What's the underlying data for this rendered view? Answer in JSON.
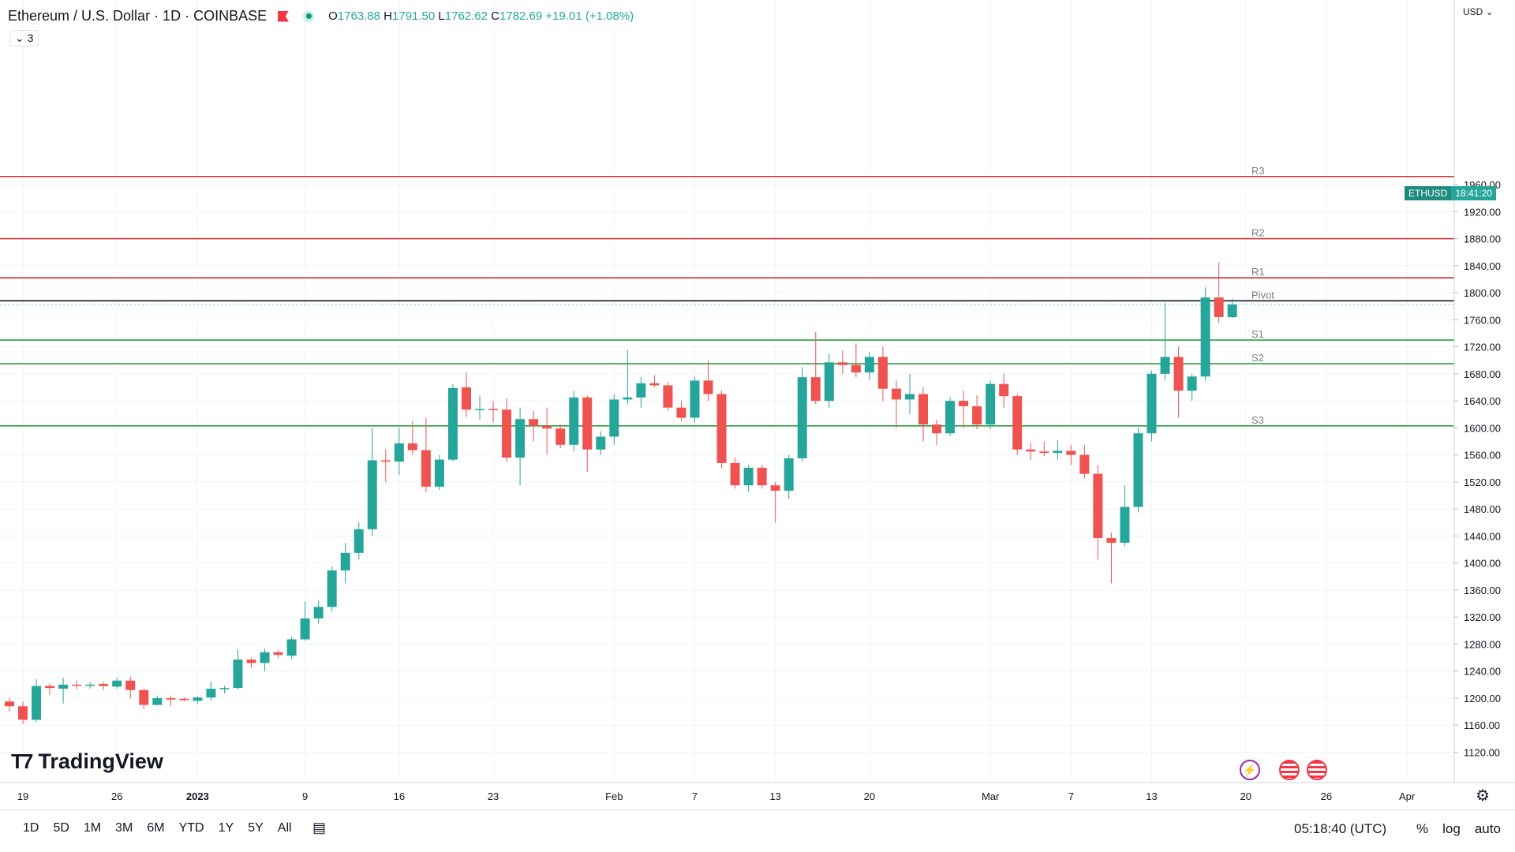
{
  "header": {
    "symbol": "Ethereum / U.S. Dollar · 1D · COINBASE",
    "open_label": "O",
    "open": "1763.88",
    "high_label": "H",
    "high": "1791.50",
    "low_label": "L",
    "low": "1762.62",
    "close_label": "C",
    "close": "1782.69",
    "change": "+19.01 (+1.08%)"
  },
  "indicator_count": "3",
  "currency": "USD",
  "logo_text": "TradingView",
  "price_tag": {
    "ticker": "ETHUSD",
    "countdown": "18:41:20"
  },
  "bottom_bar": {
    "ranges": [
      "1D",
      "5D",
      "1M",
      "3M",
      "6M",
      "YTD",
      "1Y",
      "5Y",
      "All"
    ],
    "time": "05:18:40 (UTC)",
    "options": [
      "%",
      "log",
      "auto"
    ]
  },
  "colors": {
    "up": "#26a69a",
    "down": "#ef5350",
    "resistance": "#d32f2f",
    "support": "#2e9e3e",
    "pivot": "#131722"
  },
  "chart_data": {
    "type": "candlestick",
    "title": "",
    "ylim": [
      1095,
      1985
    ],
    "y_ticks": [
      1120,
      1160,
      1200,
      1240,
      1280,
      1320,
      1360,
      1400,
      1440,
      1480,
      1520,
      1560,
      1600,
      1640,
      1680,
      1720,
      1760,
      1800,
      1840,
      1880,
      1920,
      1960
    ],
    "x_ticks": [
      {
        "label": "19",
        "date": "2022-12-19"
      },
      {
        "label": "26",
        "date": "2022-12-26"
      },
      {
        "label": "2023",
        "date": "2023-01-01"
      },
      {
        "label": "9",
        "date": "2023-01-09"
      },
      {
        "label": "16",
        "date": "2023-01-16"
      },
      {
        "label": "23",
        "date": "2023-01-23"
      },
      {
        "label": "Feb",
        "date": "2023-02-01"
      },
      {
        "label": "7",
        "date": "2023-02-07"
      },
      {
        "label": "13",
        "date": "2023-02-13"
      },
      {
        "label": "20",
        "date": "2023-02-20"
      },
      {
        "label": "Mar",
        "date": "2023-03-01"
      },
      {
        "label": "7",
        "date": "2023-03-07"
      },
      {
        "label": "13",
        "date": "2023-03-13"
      },
      {
        "label": "20",
        "date": "2023-03-20"
      },
      {
        "label": "26",
        "date": "2023-03-26"
      },
      {
        "label": "Apr",
        "date": "2023-04-01"
      }
    ],
    "levels": [
      {
        "name": "R3",
        "value": 1972,
        "kind": "resistance"
      },
      {
        "name": "R2",
        "value": 1880,
        "kind": "resistance"
      },
      {
        "name": "R1",
        "value": 1822,
        "kind": "resistance"
      },
      {
        "name": "Pivot",
        "value": 1788,
        "kind": "pivot"
      },
      {
        "name": "S1",
        "value": 1730,
        "kind": "support"
      },
      {
        "name": "S2",
        "value": 1695,
        "kind": "support"
      },
      {
        "name": "S3",
        "value": 1603,
        "kind": "support"
      }
    ],
    "candles": [
      {
        "date": "2022-12-18",
        "o": 1195,
        "h": 1200,
        "l": 1180,
        "c": 1188
      },
      {
        "date": "2022-12-19",
        "o": 1188,
        "h": 1195,
        "l": 1162,
        "c": 1168
      },
      {
        "date": "2022-12-20",
        "o": 1168,
        "h": 1228,
        "l": 1165,
        "c": 1218
      },
      {
        "date": "2022-12-21",
        "o": 1218,
        "h": 1222,
        "l": 1205,
        "c": 1215
      },
      {
        "date": "2022-12-22",
        "o": 1214,
        "h": 1230,
        "l": 1192,
        "c": 1220
      },
      {
        "date": "2022-12-23",
        "o": 1220,
        "h": 1226,
        "l": 1213,
        "c": 1219
      },
      {
        "date": "2022-12-24",
        "o": 1219,
        "h": 1224,
        "l": 1214,
        "c": 1220
      },
      {
        "date": "2022-12-25",
        "o": 1221,
        "h": 1224,
        "l": 1212,
        "c": 1218
      },
      {
        "date": "2022-12-26",
        "o": 1217,
        "h": 1230,
        "l": 1214,
        "c": 1226
      },
      {
        "date": "2022-12-27",
        "o": 1226,
        "h": 1232,
        "l": 1200,
        "c": 1212
      },
      {
        "date": "2022-12-28",
        "o": 1212,
        "h": 1214,
        "l": 1184,
        "c": 1190
      },
      {
        "date": "2022-12-29",
        "o": 1190,
        "h": 1204,
        "l": 1189,
        "c": 1200
      },
      {
        "date": "2022-12-30",
        "o": 1200,
        "h": 1204,
        "l": 1188,
        "c": 1198
      },
      {
        "date": "2022-12-31",
        "o": 1199,
        "h": 1201,
        "l": 1195,
        "c": 1197
      },
      {
        "date": "2023-01-01",
        "o": 1196,
        "h": 1203,
        "l": 1192,
        "c": 1201
      },
      {
        "date": "2023-01-02",
        "o": 1201,
        "h": 1225,
        "l": 1196,
        "c": 1214
      },
      {
        "date": "2023-01-03",
        "o": 1214,
        "h": 1218,
        "l": 1207,
        "c": 1215
      },
      {
        "date": "2023-01-04",
        "o": 1215,
        "h": 1272,
        "l": 1213,
        "c": 1257
      },
      {
        "date": "2023-01-05",
        "o": 1257,
        "h": 1260,
        "l": 1245,
        "c": 1252
      },
      {
        "date": "2023-01-06",
        "o": 1252,
        "h": 1273,
        "l": 1240,
        "c": 1268
      },
      {
        "date": "2023-01-07",
        "o": 1268,
        "h": 1271,
        "l": 1259,
        "c": 1264
      },
      {
        "date": "2023-01-08",
        "o": 1263,
        "h": 1291,
        "l": 1258,
        "c": 1287
      },
      {
        "date": "2023-01-09",
        "o": 1287,
        "h": 1343,
        "l": 1285,
        "c": 1318
      },
      {
        "date": "2023-01-10",
        "o": 1318,
        "h": 1345,
        "l": 1310,
        "c": 1335
      },
      {
        "date": "2023-01-11",
        "o": 1335,
        "h": 1395,
        "l": 1328,
        "c": 1389
      },
      {
        "date": "2023-01-12",
        "o": 1389,
        "h": 1430,
        "l": 1370,
        "c": 1415
      },
      {
        "date": "2023-01-13",
        "o": 1415,
        "h": 1460,
        "l": 1405,
        "c": 1450
      },
      {
        "date": "2023-01-14",
        "o": 1450,
        "h": 1600,
        "l": 1440,
        "c": 1552
      },
      {
        "date": "2023-01-15",
        "o": 1552,
        "h": 1568,
        "l": 1520,
        "c": 1550
      },
      {
        "date": "2023-01-16",
        "o": 1550,
        "h": 1600,
        "l": 1530,
        "c": 1577
      },
      {
        "date": "2023-01-17",
        "o": 1577,
        "h": 1610,
        "l": 1560,
        "c": 1567
      },
      {
        "date": "2023-01-18",
        "o": 1567,
        "h": 1615,
        "l": 1505,
        "c": 1513
      },
      {
        "date": "2023-01-19",
        "o": 1513,
        "h": 1560,
        "l": 1508,
        "c": 1553
      },
      {
        "date": "2023-01-20",
        "o": 1553,
        "h": 1665,
        "l": 1550,
        "c": 1659
      },
      {
        "date": "2023-01-21",
        "o": 1660,
        "h": 1682,
        "l": 1616,
        "c": 1627
      },
      {
        "date": "2023-01-22",
        "o": 1627,
        "h": 1648,
        "l": 1612,
        "c": 1628
      },
      {
        "date": "2023-01-23",
        "o": 1628,
        "h": 1640,
        "l": 1608,
        "c": 1627
      },
      {
        "date": "2023-01-24",
        "o": 1627,
        "h": 1643,
        "l": 1550,
        "c": 1556
      },
      {
        "date": "2023-01-25",
        "o": 1556,
        "h": 1630,
        "l": 1515,
        "c": 1613
      },
      {
        "date": "2023-01-26",
        "o": 1613,
        "h": 1625,
        "l": 1580,
        "c": 1603
      },
      {
        "date": "2023-01-27",
        "o": 1603,
        "h": 1630,
        "l": 1560,
        "c": 1599
      },
      {
        "date": "2023-01-28",
        "o": 1599,
        "h": 1605,
        "l": 1570,
        "c": 1575
      },
      {
        "date": "2023-01-29",
        "o": 1575,
        "h": 1655,
        "l": 1565,
        "c": 1645
      },
      {
        "date": "2023-01-30",
        "o": 1645,
        "h": 1648,
        "l": 1535,
        "c": 1568
      },
      {
        "date": "2023-01-31",
        "o": 1568,
        "h": 1595,
        "l": 1560,
        "c": 1587
      },
      {
        "date": "2023-02-01",
        "o": 1587,
        "h": 1650,
        "l": 1575,
        "c": 1642
      },
      {
        "date": "2023-02-02",
        "o": 1642,
        "h": 1715,
        "l": 1635,
        "c": 1645
      },
      {
        "date": "2023-02-03",
        "o": 1645,
        "h": 1675,
        "l": 1630,
        "c": 1666
      },
      {
        "date": "2023-02-04",
        "o": 1666,
        "h": 1678,
        "l": 1660,
        "c": 1663
      },
      {
        "date": "2023-02-05",
        "o": 1663,
        "h": 1668,
        "l": 1625,
        "c": 1630
      },
      {
        "date": "2023-02-06",
        "o": 1630,
        "h": 1640,
        "l": 1610,
        "c": 1615
      },
      {
        "date": "2023-02-07",
        "o": 1615,
        "h": 1675,
        "l": 1608,
        "c": 1670
      },
      {
        "date": "2023-02-08",
        "o": 1670,
        "h": 1700,
        "l": 1640,
        "c": 1650
      },
      {
        "date": "2023-02-09",
        "o": 1650,
        "h": 1655,
        "l": 1540,
        "c": 1548
      },
      {
        "date": "2023-02-10",
        "o": 1548,
        "h": 1556,
        "l": 1510,
        "c": 1515
      },
      {
        "date": "2023-02-11",
        "o": 1515,
        "h": 1545,
        "l": 1505,
        "c": 1541
      },
      {
        "date": "2023-02-12",
        "o": 1541,
        "h": 1545,
        "l": 1510,
        "c": 1515
      },
      {
        "date": "2023-02-13",
        "o": 1515,
        "h": 1520,
        "l": 1460,
        "c": 1507
      },
      {
        "date": "2023-02-14",
        "o": 1507,
        "h": 1560,
        "l": 1495,
        "c": 1555
      },
      {
        "date": "2023-02-15",
        "o": 1555,
        "h": 1690,
        "l": 1550,
        "c": 1675
      },
      {
        "date": "2023-02-16",
        "o": 1675,
        "h": 1742,
        "l": 1635,
        "c": 1640
      },
      {
        "date": "2023-02-17",
        "o": 1640,
        "h": 1710,
        "l": 1630,
        "c": 1697
      },
      {
        "date": "2023-02-18",
        "o": 1697,
        "h": 1715,
        "l": 1680,
        "c": 1693
      },
      {
        "date": "2023-02-19",
        "o": 1693,
        "h": 1725,
        "l": 1675,
        "c": 1682
      },
      {
        "date": "2023-02-20",
        "o": 1682,
        "h": 1712,
        "l": 1670,
        "c": 1705
      },
      {
        "date": "2023-02-21",
        "o": 1705,
        "h": 1720,
        "l": 1640,
        "c": 1658
      },
      {
        "date": "2023-02-22",
        "o": 1658,
        "h": 1670,
        "l": 1600,
        "c": 1642
      },
      {
        "date": "2023-02-23",
        "o": 1642,
        "h": 1680,
        "l": 1620,
        "c": 1650
      },
      {
        "date": "2023-02-24",
        "o": 1650,
        "h": 1660,
        "l": 1580,
        "c": 1605
      },
      {
        "date": "2023-02-25",
        "o": 1605,
        "h": 1612,
        "l": 1575,
        "c": 1592
      },
      {
        "date": "2023-02-26",
        "o": 1592,
        "h": 1645,
        "l": 1588,
        "c": 1640
      },
      {
        "date": "2023-02-27",
        "o": 1640,
        "h": 1655,
        "l": 1600,
        "c": 1632
      },
      {
        "date": "2023-02-28",
        "o": 1632,
        "h": 1648,
        "l": 1598,
        "c": 1605
      },
      {
        "date": "2023-03-01",
        "o": 1605,
        "h": 1670,
        "l": 1598,
        "c": 1665
      },
      {
        "date": "2023-03-02",
        "o": 1665,
        "h": 1680,
        "l": 1630,
        "c": 1647
      },
      {
        "date": "2023-03-03",
        "o": 1647,
        "h": 1650,
        "l": 1560,
        "c": 1568
      },
      {
        "date": "2023-03-04",
        "o": 1568,
        "h": 1578,
        "l": 1552,
        "c": 1565
      },
      {
        "date": "2023-03-05",
        "o": 1565,
        "h": 1580,
        "l": 1558,
        "c": 1563
      },
      {
        "date": "2023-03-06",
        "o": 1563,
        "h": 1582,
        "l": 1553,
        "c": 1566
      },
      {
        "date": "2023-03-07",
        "o": 1566,
        "h": 1575,
        "l": 1545,
        "c": 1560
      },
      {
        "date": "2023-03-08",
        "o": 1560,
        "h": 1575,
        "l": 1525,
        "c": 1532
      },
      {
        "date": "2023-03-09",
        "o": 1532,
        "h": 1545,
        "l": 1405,
        "c": 1437
      },
      {
        "date": "2023-03-10",
        "o": 1437,
        "h": 1445,
        "l": 1370,
        "c": 1430
      },
      {
        "date": "2023-03-11",
        "o": 1430,
        "h": 1515,
        "l": 1425,
        "c": 1483
      },
      {
        "date": "2023-03-12",
        "o": 1483,
        "h": 1600,
        "l": 1475,
        "c": 1592
      },
      {
        "date": "2023-03-13",
        "o": 1592,
        "h": 1685,
        "l": 1580,
        "c": 1680
      },
      {
        "date": "2023-03-14",
        "o": 1680,
        "h": 1785,
        "l": 1670,
        "c": 1705
      },
      {
        "date": "2023-03-15",
        "o": 1705,
        "h": 1720,
        "l": 1615,
        "c": 1655
      },
      {
        "date": "2023-03-16",
        "o": 1655,
        "h": 1680,
        "l": 1640,
        "c": 1676
      },
      {
        "date": "2023-03-17",
        "o": 1676,
        "h": 1808,
        "l": 1670,
        "c": 1793
      },
      {
        "date": "2023-03-18",
        "o": 1793,
        "h": 1845,
        "l": 1755,
        "c": 1764
      },
      {
        "date": "2023-03-19",
        "o": 1763.88,
        "h": 1791.5,
        "l": 1762.62,
        "c": 1782.69
      }
    ]
  }
}
